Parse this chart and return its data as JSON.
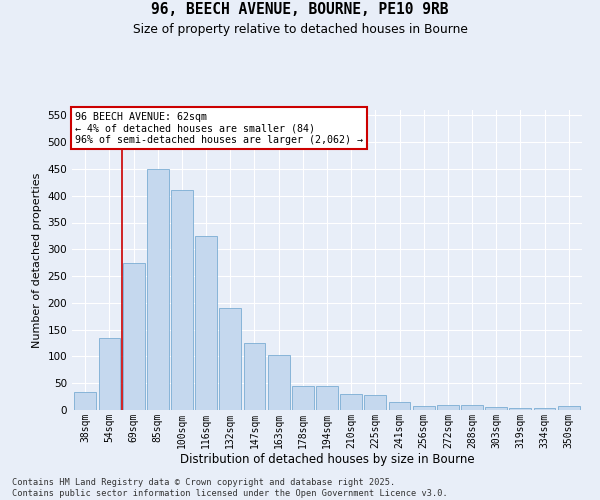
{
  "title1": "96, BEECH AVENUE, BOURNE, PE10 9RB",
  "title2": "Size of property relative to detached houses in Bourne",
  "xlabel": "Distribution of detached houses by size in Bourne",
  "ylabel": "Number of detached properties",
  "categories": [
    "38sqm",
    "54sqm",
    "69sqm",
    "85sqm",
    "100sqm",
    "116sqm",
    "132sqm",
    "147sqm",
    "163sqm",
    "178sqm",
    "194sqm",
    "210sqm",
    "225sqm",
    "241sqm",
    "256sqm",
    "272sqm",
    "288sqm",
    "303sqm",
    "319sqm",
    "334sqm",
    "350sqm"
  ],
  "values": [
    33,
    135,
    275,
    450,
    410,
    325,
    190,
    125,
    103,
    44,
    45,
    30,
    28,
    15,
    8,
    10,
    9,
    5,
    4,
    4,
    7
  ],
  "bar_color": "#c5d8ee",
  "bar_edge_color": "#7badd4",
  "vline_x": 1.5,
  "vline_color": "#cc0000",
  "annotation_title": "96 BEECH AVENUE: 62sqm",
  "annotation_line1": "← 4% of detached houses are smaller (84)",
  "annotation_line2": "96% of semi-detached houses are larger (2,062) →",
  "annotation_box_color": "white",
  "annotation_box_edge": "#cc0000",
  "ylim": [
    0,
    560
  ],
  "yticks": [
    0,
    50,
    100,
    150,
    200,
    250,
    300,
    350,
    400,
    450,
    500,
    550
  ],
  "footer1": "Contains HM Land Registry data © Crown copyright and database right 2025.",
  "footer2": "Contains public sector information licensed under the Open Government Licence v3.0.",
  "bg_color": "#e8eef8",
  "plot_bg_color": "#e8eef8",
  "grid_color": "#ffffff"
}
